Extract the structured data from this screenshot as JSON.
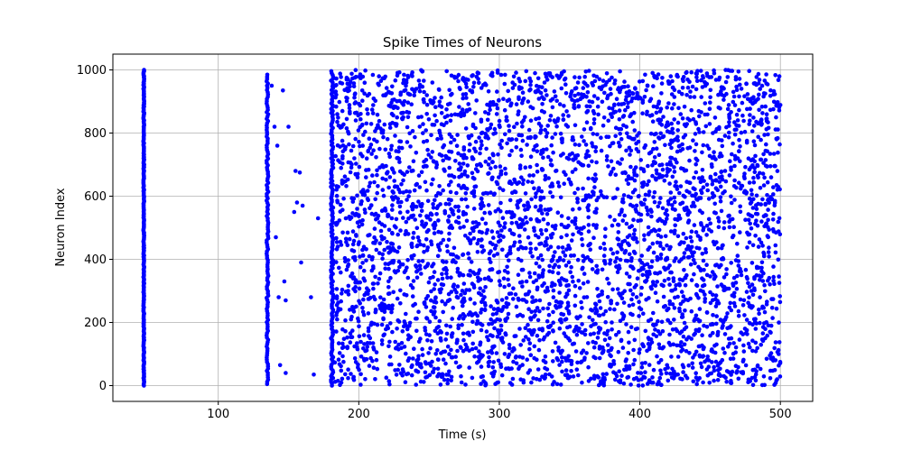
{
  "chart_data": {
    "type": "scatter",
    "title": "Spike Times of Neurons",
    "xlabel": "Time (s)",
    "ylabel": "Neuron Index",
    "xlim": [
      25,
      523
    ],
    "ylim": [
      -50,
      1050
    ],
    "xticks": [
      100,
      200,
      300,
      400,
      500
    ],
    "yticks": [
      0,
      200,
      400,
      600,
      800,
      1000
    ],
    "grid": true,
    "marker_color": "#0000ff",
    "spike_groups": [
      {
        "description_time": 47,
        "neuron_range": [
          0,
          1000
        ],
        "density": "all neurons (dense column)"
      },
      {
        "description_time": 135,
        "neuron_range": [
          0,
          990
        ],
        "density": "dense column"
      },
      {
        "description_time_range": [
          138,
          175
        ],
        "neuron_range": [
          30,
          960
        ],
        "density": "sparse"
      },
      {
        "description_time": 181,
        "neuron_range": [
          0,
          1000
        ],
        "density": "dense column"
      },
      {
        "description_time_range": [
          182,
          500
        ],
        "neuron_range": [
          0,
          1000
        ],
        "density": "dense random firing"
      }
    ],
    "sparse_points": [
      [
        138,
        950
      ],
      [
        140,
        820
      ],
      [
        142,
        760
      ],
      [
        141,
        470
      ],
      [
        143,
        280
      ],
      [
        144,
        65
      ],
      [
        146,
        935
      ],
      [
        147,
        330
      ],
      [
        148,
        270
      ],
      [
        150,
        820
      ],
      [
        148,
        40
      ],
      [
        155,
        680
      ],
      [
        158,
        675
      ],
      [
        156,
        580
      ],
      [
        154,
        550
      ],
      [
        160,
        570
      ],
      [
        159,
        390
      ],
      [
        166,
        280
      ],
      [
        168,
        35
      ],
      [
        171,
        530
      ]
    ]
  }
}
